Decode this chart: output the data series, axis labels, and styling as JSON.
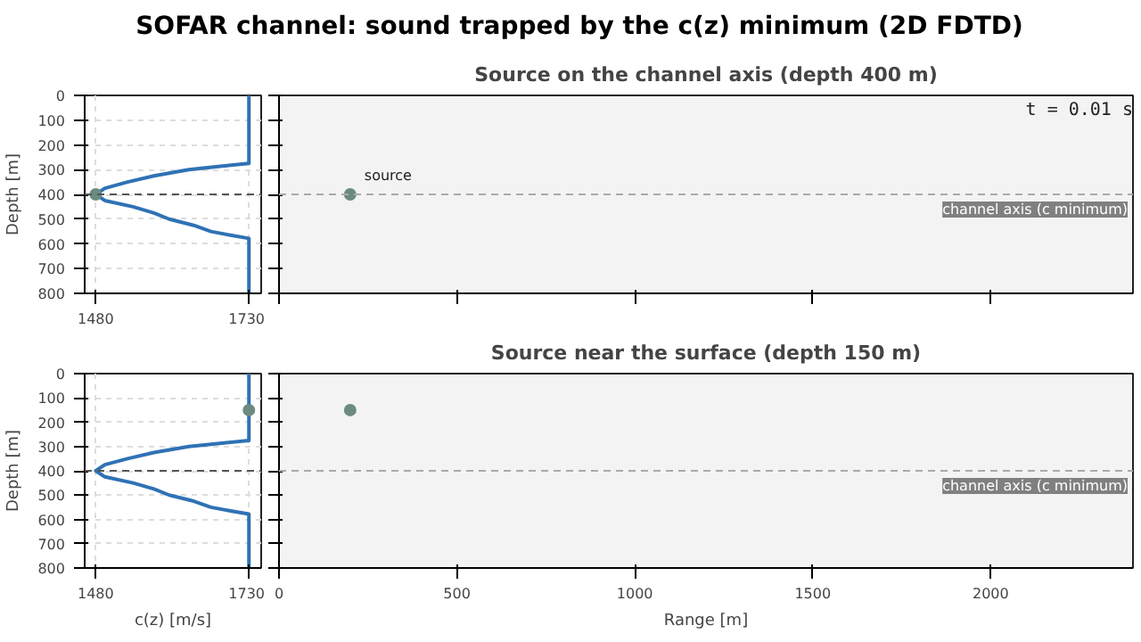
{
  "chart_data": [
    {
      "type": "other",
      "title": "SOFAR channel: sound trapped by the c(z) minimum (2D FDTD)"
    },
    {
      "type": "line",
      "ylabel": "Depth [m]",
      "xlim": [
        1462,
        1750
      ],
      "xticks": [
        1480,
        1730
      ],
      "ylim": [
        800,
        0
      ],
      "yticks": [
        0,
        100,
        200,
        300,
        400,
        500,
        600,
        700,
        800
      ],
      "grid": true,
      "series": [
        {
          "type": "line",
          "color": "#2f72b5",
          "x": [
            1730,
            1730,
            1690,
            1632,
            1575,
            1532,
            1495,
            1480,
            1495,
            1541,
            1575,
            1600,
            1640,
            1668,
            1700,
            1730,
            1730
          ],
          "values": [
            0,
            275,
            285,
            300,
            325,
            350,
            375,
            400,
            425,
            450,
            475,
            500,
            525,
            550,
            565,
            578,
            800
          ]
        },
        {
          "type": "scatter",
          "marker": "circle",
          "color": "#6b8b80",
          "x": [
            1480
          ],
          "values": [
            400
          ]
        }
      ],
      "ref_lines": [
        {
          "axis": "y",
          "value": 400,
          "line_style": "dashed",
          "color": "#555555"
        }
      ]
    },
    {
      "type": "scatter",
      "title": "Source on the channel axis (depth 400 m)",
      "xlim": [
        0,
        2400
      ],
      "xticks": [
        0,
        500,
        1000,
        1500,
        2000
      ],
      "ylim": [
        800,
        0
      ],
      "yticks": [
        0,
        100,
        200,
        300,
        400,
        500,
        600,
        700,
        800
      ],
      "tick_labels": false,
      "marker": "circle",
      "series": [
        {
          "color": "#6b8b80",
          "x": [
            200
          ],
          "values": [
            400
          ]
        }
      ],
      "ref_lines": [
        {
          "axis": "y",
          "value": 400,
          "label": "channel axis (c minimum)",
          "line_style": "dashed",
          "color": "#aaaaaa"
        }
      ],
      "annotations": [
        {
          "text": "source",
          "x": 200,
          "y": 400
        },
        "t =  0.01 s"
      ]
    },
    {
      "type": "line",
      "xlabel": "c(z) [m/s]",
      "ylabel": "Depth [m]",
      "xlim": [
        1462,
        1750
      ],
      "xticks": [
        1480,
        1730
      ],
      "ylim": [
        800,
        0
      ],
      "yticks": [
        0,
        100,
        200,
        300,
        400,
        500,
        600,
        700,
        800
      ],
      "grid": true,
      "series": [
        {
          "type": "line",
          "color": "#2f72b5",
          "x": [
            1730,
            1730,
            1690,
            1632,
            1575,
            1532,
            1495,
            1480,
            1495,
            1541,
            1575,
            1600,
            1640,
            1668,
            1700,
            1730,
            1730
          ],
          "values": [
            0,
            275,
            285,
            300,
            325,
            350,
            375,
            400,
            425,
            450,
            475,
            500,
            525,
            550,
            565,
            578,
            800
          ]
        },
        {
          "type": "scatter",
          "marker": "circle",
          "color": "#6b8b80",
          "x": [
            1730
          ],
          "values": [
            150
          ]
        }
      ],
      "ref_lines": [
        {
          "axis": "y",
          "value": 400,
          "line_style": "dashed",
          "color": "#555555"
        }
      ]
    },
    {
      "type": "scatter",
      "title": "Source near the surface (depth 150 m)",
      "xlabel": "Range [m]",
      "xlim": [
        0,
        2400
      ],
      "xticks": [
        0,
        500,
        1000,
        1500,
        2000
      ],
      "ylim": [
        800,
        0
      ],
      "yticks": [
        0,
        100,
        200,
        300,
        400,
        500,
        600,
        700,
        800
      ],
      "tick_labels": "x",
      "marker": "circle",
      "series": [
        {
          "color": "#6b8b80",
          "x": [
            200
          ],
          "values": [
            150
          ]
        }
      ],
      "ref_lines": [
        {
          "axis": "y",
          "value": 400,
          "label": "channel axis (c minimum)",
          "line_style": "dashed",
          "color": "#aaaaaa"
        }
      ]
    }
  ]
}
